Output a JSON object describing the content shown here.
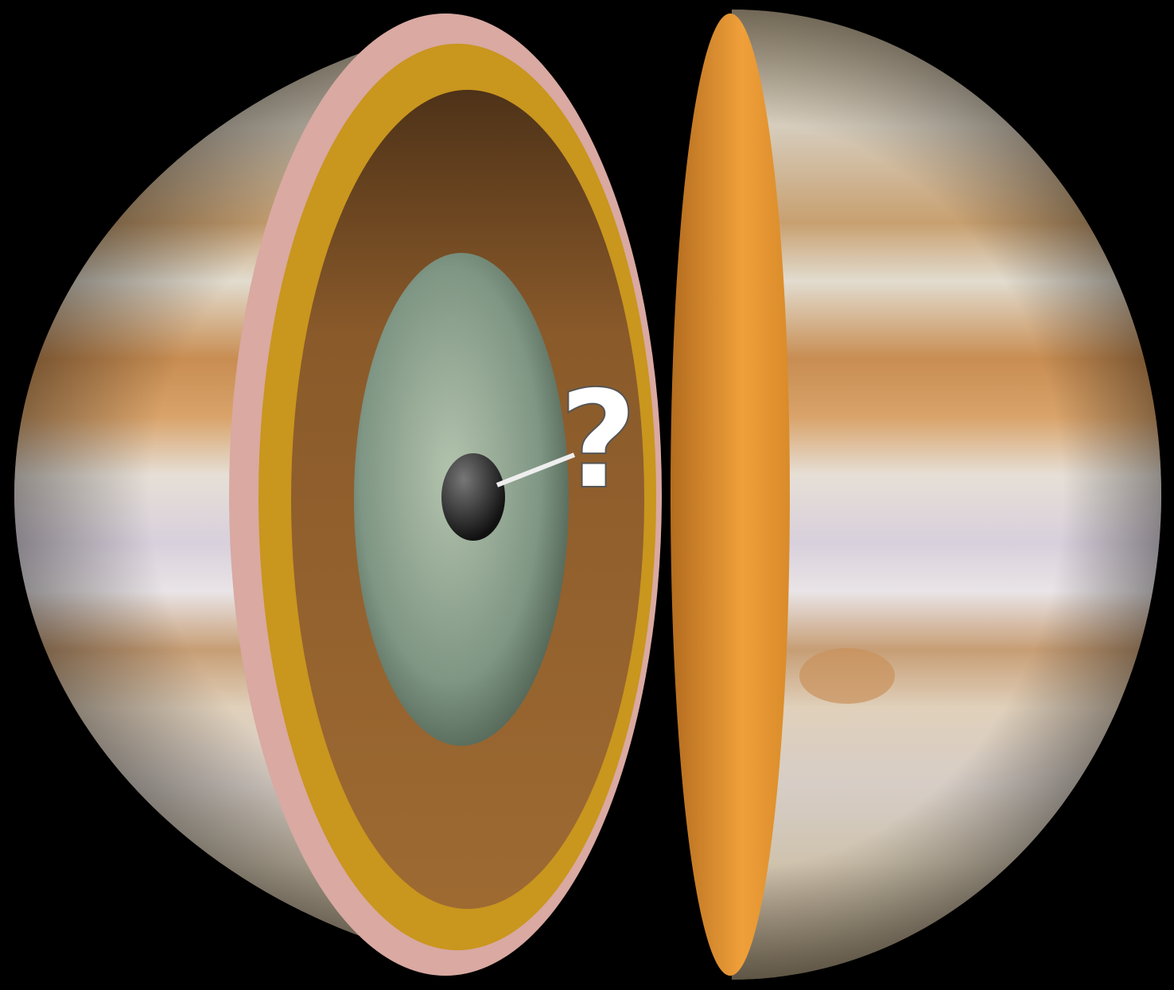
{
  "label": "?"
}
